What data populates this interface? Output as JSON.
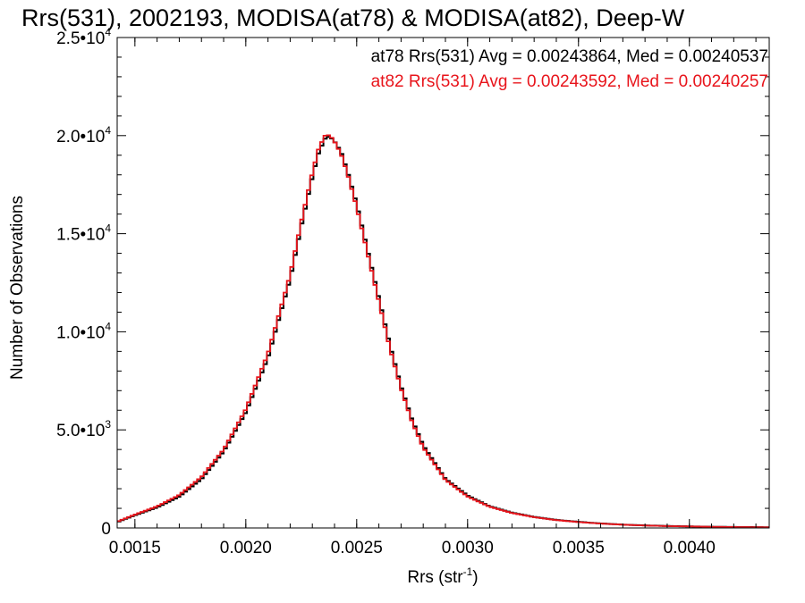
{
  "chart_data": {
    "type": "line",
    "title": "Rrs(531), 2002193, MODISA(at78) & MODISA(at82), Deep-W",
    "xlabel": {
      "base": "Rrs (str",
      "sup": "-1",
      "close": ")"
    },
    "ylabel": "Number of Observations",
    "xlim": [
      0.00142,
      0.00436
    ],
    "ylim": [
      0,
      25000
    ],
    "x_ticks": [
      {
        "value": 0.0015,
        "label": "0.0015"
      },
      {
        "value": 0.002,
        "label": "0.0020"
      },
      {
        "value": 0.0025,
        "label": "0.0025"
      },
      {
        "value": 0.003,
        "label": "0.0030"
      },
      {
        "value": 0.0035,
        "label": "0.0035"
      },
      {
        "value": 0.004,
        "label": "0.0040"
      }
    ],
    "y_ticks": [
      {
        "value": 0,
        "mant": "0",
        "exp": ""
      },
      {
        "value": 5000,
        "mant": "5.0•10",
        "exp": "3"
      },
      {
        "value": 10000,
        "mant": "1.0•10",
        "exp": "4"
      },
      {
        "value": 15000,
        "mant": "1.5•10",
        "exp": "4"
      },
      {
        "value": 20000,
        "mant": "2.0•10",
        "exp": "4"
      },
      {
        "value": 25000,
        "mant": "2.5•10",
        "exp": "4"
      }
    ],
    "legend_position": "top-right",
    "series": [
      {
        "name": "at78",
        "legend": "at78 Rrs(531) Avg = 0.00243864, Med = 0.00240537",
        "color": "#000000",
        "x": [
          0.00142,
          0.0015,
          0.0016,
          0.0017,
          0.0018,
          0.0019,
          0.002,
          0.0021,
          0.0022,
          0.00225,
          0.0023,
          0.00233,
          0.00236,
          0.00238,
          0.0024,
          0.00243,
          0.00246,
          0.0025,
          0.00255,
          0.0026,
          0.00265,
          0.0027,
          0.00275,
          0.0028,
          0.0029,
          0.003,
          0.0031,
          0.0032,
          0.0033,
          0.0034,
          0.0035,
          0.0036,
          0.0037,
          0.0038,
          0.0039,
          0.004,
          0.0041,
          0.0042,
          0.00436
        ],
        "y": [
          300,
          650,
          1050,
          1600,
          2500,
          3900,
          5900,
          8700,
          12700,
          15400,
          17900,
          19200,
          19900,
          19950,
          19700,
          19150,
          18100,
          16500,
          14100,
          11700,
          9300,
          7200,
          5500,
          4200,
          2500,
          1650,
          1100,
          780,
          560,
          410,
          310,
          230,
          170,
          130,
          100,
          80,
          60,
          50,
          35
        ]
      },
      {
        "name": "at82",
        "legend": "at82 Rrs(531) Avg = 0.00243592, Med = 0.00240257",
        "color": "#e8141b",
        "x": [
          0.00142,
          0.0015,
          0.0016,
          0.0017,
          0.0018,
          0.0019,
          0.002,
          0.0021,
          0.0022,
          0.00225,
          0.0023,
          0.00233,
          0.00236,
          0.00238,
          0.0024,
          0.00243,
          0.00246,
          0.0025,
          0.00255,
          0.0026,
          0.00265,
          0.0027,
          0.00275,
          0.0028,
          0.0029,
          0.003,
          0.0031,
          0.0032,
          0.0033,
          0.0034,
          0.0035,
          0.0036,
          0.0037,
          0.0038,
          0.0039,
          0.004,
          0.0041,
          0.0042,
          0.00436
        ],
        "y": [
          320,
          680,
          1100,
          1680,
          2600,
          4000,
          6050,
          8900,
          12900,
          15600,
          18100,
          19400,
          20050,
          20000,
          19700,
          19050,
          18000,
          16350,
          13950,
          11550,
          9150,
          7100,
          5400,
          4100,
          2450,
          1600,
          1080,
          760,
          550,
          400,
          300,
          225,
          165,
          125,
          95,
          78,
          58,
          48,
          33
        ]
      }
    ]
  }
}
